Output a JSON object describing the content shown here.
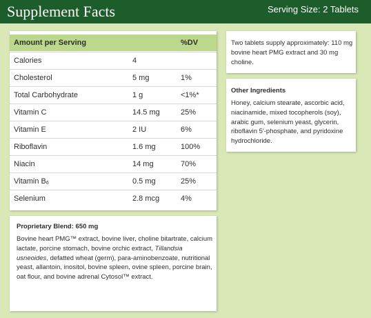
{
  "header": {
    "title": "Supplement Facts",
    "serving_size": "Serving Size: 2 Tablets"
  },
  "colors": {
    "header_bg": "#1d5c2b",
    "page_bg": "#d9e8b6",
    "table_header_bg": "#bcd88c"
  },
  "nutrition_table": {
    "columns": [
      "Amount per Serving",
      "",
      "%DV"
    ],
    "rows": [
      {
        "name": "Calories",
        "amount": "4",
        "dv": ""
      },
      {
        "name": "Cholesterol",
        "amount": "5 mg",
        "dv": "1%"
      },
      {
        "name": "Total Carbohydrate",
        "amount": "1 g",
        "dv": "<1%*"
      },
      {
        "name": "Vitamin C",
        "amount": "14.5 mg",
        "dv": "25%"
      },
      {
        "name": "Vitamin E",
        "amount": "2 IU",
        "dv": "6%"
      },
      {
        "name": "Riboflavin",
        "amount": "1.6 mg",
        "dv": "100%"
      },
      {
        "name": "Niacin",
        "amount": "14 mg",
        "dv": "70%"
      },
      {
        "name": "Vitamin B",
        "name_sub": "6",
        "amount": "0.5 mg",
        "dv": "25%"
      },
      {
        "name": "Selenium",
        "amount": "2.8 mcg",
        "dv": "4%"
      }
    ]
  },
  "proprietary_blend": {
    "title": "Proprietary Blend: 650 mg",
    "text_before_italic": "Bovine heart PMG™ extract, bovine liver, choline bitartrate, calcium lactate, porcine stomach, bovine orchic extract, ",
    "italic": "Tillandsia usneoides",
    "text_after_italic": ", defatted wheat (germ), para-aminobenzoate, nutritional yeast, allantoin, inositol, bovine spleen, ovine spleen, porcine brain, oat flour, and bovine adrenal Cytosol™ extract."
  },
  "supply_note": "Two tablets supply approximately: 110 mg bovine heart PMG extract and 30 mg choline.",
  "other_ingredients": {
    "title": "Other Ingredients",
    "text": "Honey, calcium stearate, ascorbic acid, niacinamide, mixed tocopherols (soy), arabic gum, selenium yeast, glycerin, riboflavin 5'-phosphate, and pyridoxine hydrochloride."
  }
}
